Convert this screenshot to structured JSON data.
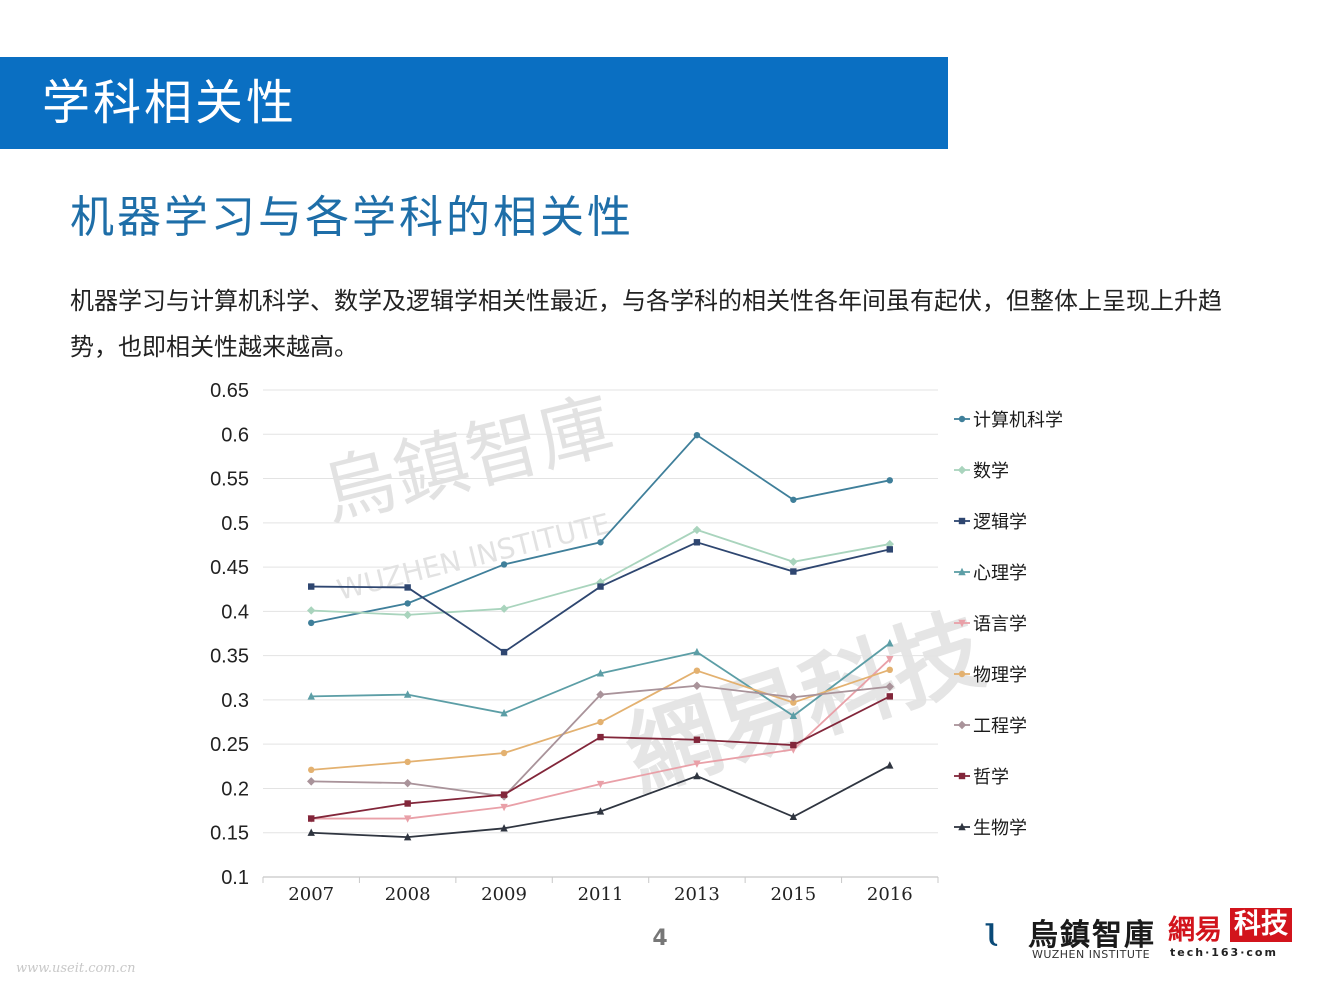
{
  "header": {
    "title": "学科相关性"
  },
  "subtitle": "机器学习与各学科的相关性",
  "description": "机器学习与计算机科学、数学及逻辑学相关性最近，与各学科的相关性各年间虽有起伏，但整体上呈现上升趋势，也即相关性越来越高。",
  "watermark": {
    "wuzhen_cn": "烏鎮智庫",
    "wuzhen_en": "WUZHEN INSTITUTE",
    "netease_cn": "網易科技"
  },
  "page_number": "4",
  "footer": {
    "wuzhen_logo_cn": "烏鎮智庫",
    "wuzhen_logo_en": "WUZHEN INSTITUTE",
    "netease_logo_part1": "網易",
    "netease_logo_part2": "科技",
    "netease_logo_url": "tech·163·com",
    "site_mark": "www.useit.com.cn"
  },
  "chart_data": {
    "type": "line",
    "title": "",
    "xlabel": "",
    "ylabel": "",
    "categories": [
      "2007",
      "2008",
      "2009",
      "2011",
      "2013",
      "2015",
      "2016"
    ],
    "ylim": [
      0.1,
      0.65
    ],
    "yticks": [
      0.1,
      0.15,
      0.2,
      0.25,
      0.3,
      0.35,
      0.4,
      0.45,
      0.5,
      0.55,
      0.6,
      0.65
    ],
    "ytick_labels": [
      "0.1",
      "0.15",
      "0.2",
      "0.25",
      "0.3",
      "0.35",
      "0.4",
      "0.45",
      "0.5",
      "0.55",
      "0.6",
      "0.65"
    ],
    "grid": true,
    "legend_position": "right",
    "series": [
      {
        "name": "计算机科学",
        "color": "#3f7f9a",
        "marker": "circle",
        "values": [
          0.387,
          0.409,
          0.453,
          0.478,
          0.599,
          0.526,
          0.548
        ]
      },
      {
        "name": "数学",
        "color": "#a9d4bd",
        "marker": "diamond",
        "values": [
          0.401,
          0.396,
          0.403,
          0.433,
          0.492,
          0.456,
          0.476
        ]
      },
      {
        "name": "逻辑学",
        "color": "#2e4670",
        "marker": "square",
        "values": [
          0.428,
          0.427,
          0.354,
          0.428,
          0.478,
          0.445,
          0.47
        ]
      },
      {
        "name": "心理学",
        "color": "#5c9ea6",
        "marker": "triangle",
        "values": [
          0.304,
          0.306,
          0.285,
          0.33,
          0.354,
          0.282,
          0.364
        ]
      },
      {
        "name": "语言学",
        "color": "#e9a0a8",
        "marker": "triangle-down",
        "values": [
          0.166,
          0.166,
          0.179,
          0.205,
          0.228,
          0.244,
          0.346
        ]
      },
      {
        "name": "物理学",
        "color": "#e3b170",
        "marker": "circle",
        "values": [
          0.221,
          0.23,
          0.24,
          0.275,
          0.333,
          0.297,
          0.334
        ]
      },
      {
        "name": "工程学",
        "color": "#a9939a",
        "marker": "diamond",
        "values": [
          0.208,
          0.206,
          0.191,
          0.306,
          0.316,
          0.303,
          0.315
        ]
      },
      {
        "name": "哲学",
        "color": "#82263a",
        "marker": "square",
        "values": [
          0.166,
          0.183,
          0.193,
          0.258,
          0.255,
          0.249,
          0.304
        ]
      },
      {
        "name": "生物学",
        "color": "#2f3540",
        "marker": "triangle",
        "values": [
          0.15,
          0.145,
          0.155,
          0.174,
          0.214,
          0.168,
          0.226
        ]
      }
    ]
  }
}
